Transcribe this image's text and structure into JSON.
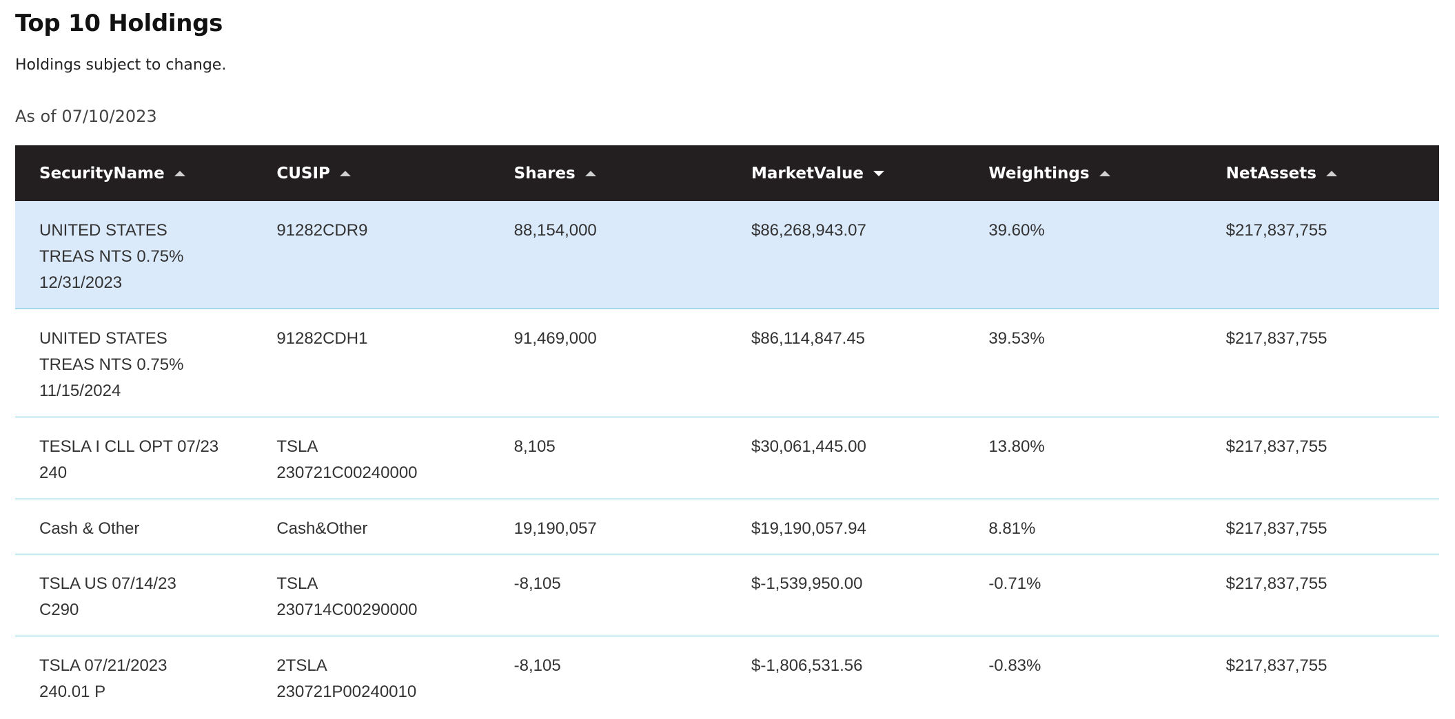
{
  "page": {
    "title": "Top 10 Holdings",
    "subtitle": "Holdings subject to change.",
    "as_of": "As of 07/10/2023"
  },
  "table": {
    "columns": [
      {
        "label": "SecurityName",
        "sort": "up"
      },
      {
        "label": "CUSIP",
        "sort": "up"
      },
      {
        "label": "Shares",
        "sort": "up"
      },
      {
        "label": "MarketValue",
        "sort": "down"
      },
      {
        "label": "Weightings",
        "sort": "up"
      },
      {
        "label": "NetAssets",
        "sort": "up"
      }
    ],
    "rows": [
      {
        "security_name": [
          "UNITED STATES",
          "TREAS NTS 0.75%",
          "12/31/2023"
        ],
        "cusip": [
          "91282CDR9"
        ],
        "shares": "88,154,000",
        "market_value": "$86,268,943.07",
        "weighting": "39.60%",
        "net_assets": "$217,837,755"
      },
      {
        "security_name": [
          "UNITED STATES",
          "TREAS NTS 0.75%",
          "11/15/2024"
        ],
        "cusip": [
          "91282CDH1"
        ],
        "shares": "91,469,000",
        "market_value": "$86,114,847.45",
        "weighting": "39.53%",
        "net_assets": "$217,837,755"
      },
      {
        "security_name": [
          "TESLA I CLL OPT 07/23",
          "240"
        ],
        "cusip": [
          "TSLA",
          "230721C00240000"
        ],
        "shares": "8,105",
        "market_value": "$30,061,445.00",
        "weighting": "13.80%",
        "net_assets": "$217,837,755"
      },
      {
        "security_name": [
          "Cash & Other"
        ],
        "cusip": [
          "Cash&Other"
        ],
        "shares": "19,190,057",
        "market_value": "$19,190,057.94",
        "weighting": "8.81%",
        "net_assets": "$217,837,755"
      },
      {
        "security_name": [
          "TSLA US 07/14/23",
          "C290"
        ],
        "cusip": [
          "TSLA",
          "230714C00290000"
        ],
        "shares": "-8,105",
        "market_value": "$-1,539,950.00",
        "weighting": "-0.71%",
        "net_assets": "$217,837,755"
      },
      {
        "security_name": [
          "TSLA 07/21/2023",
          "240.01 P"
        ],
        "cusip": [
          "2TSLA",
          "230721P00240010"
        ],
        "shares": "-8,105",
        "market_value": "$-1,806,531.56",
        "weighting": "-0.83%",
        "net_assets": "$217,837,755"
      }
    ]
  },
  "colors": {
    "header_bg": "#231f20",
    "highlight_row_bg": "#dbeafb",
    "row_divider": "#5ec6d6"
  }
}
